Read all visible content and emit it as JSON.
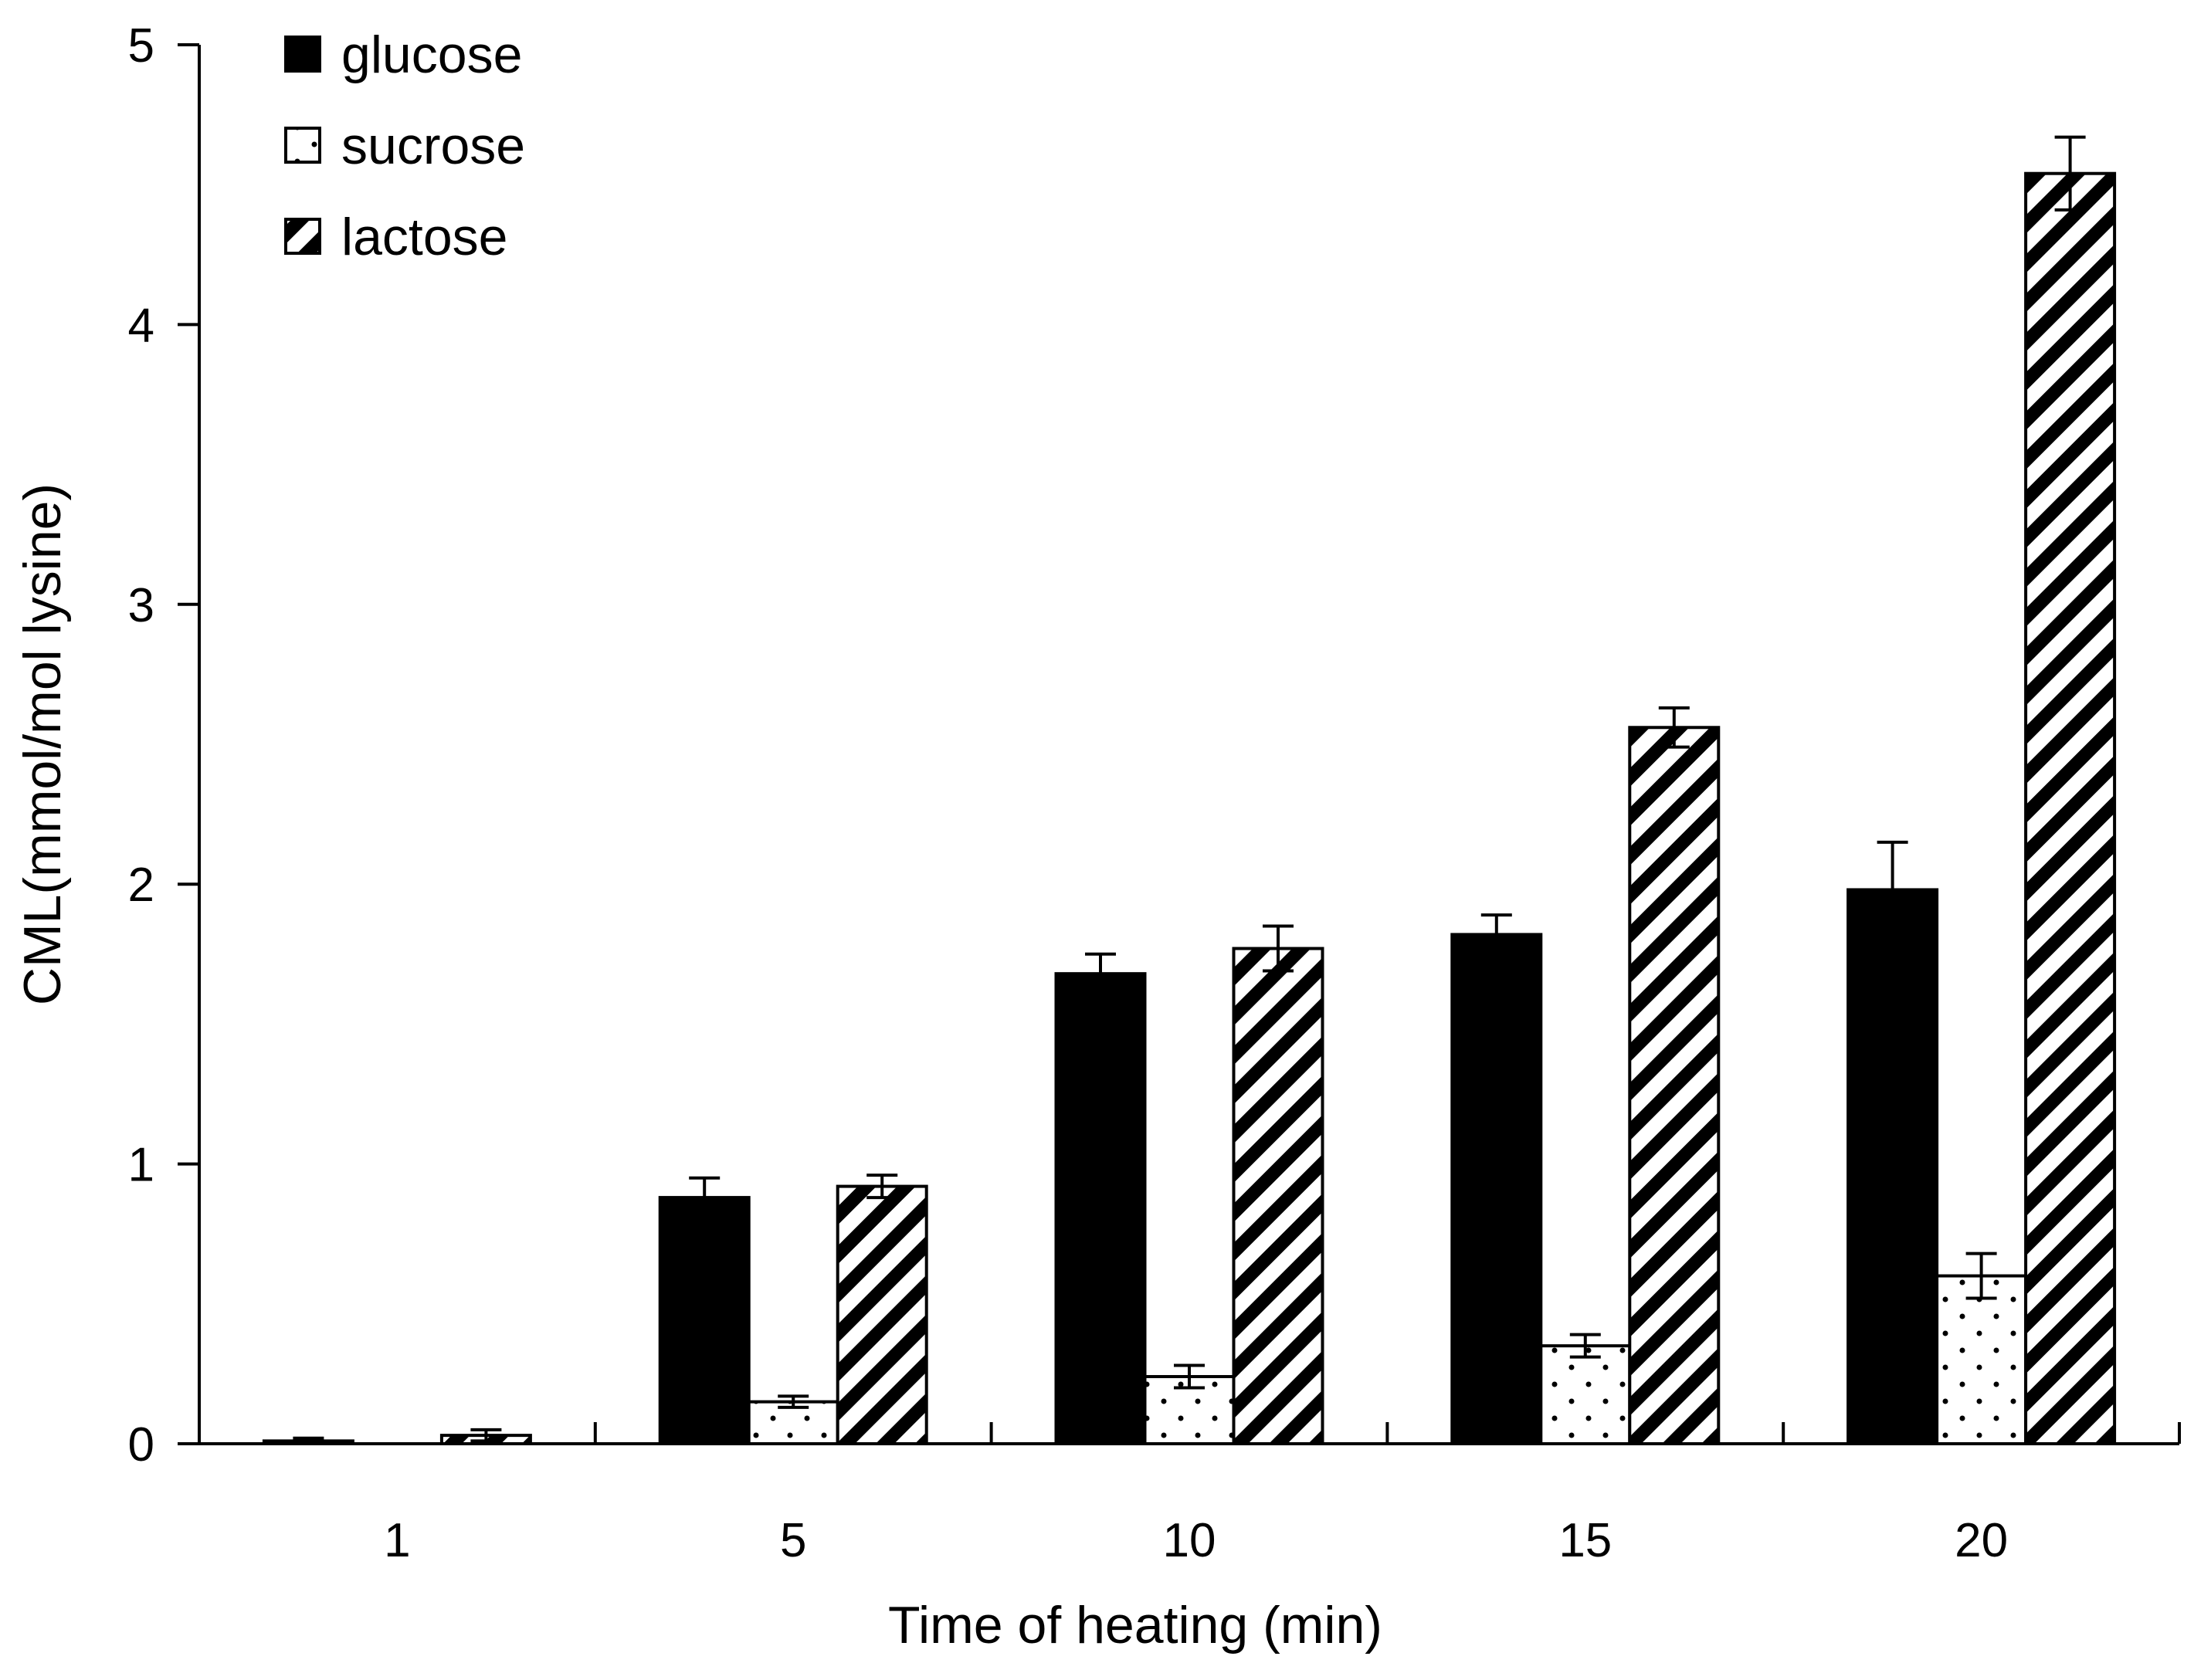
{
  "chart_data": {
    "type": "bar",
    "title": "",
    "xlabel": "Time of heating (min)",
    "ylabel": "CML(mmol/mol lysine)",
    "categories": [
      "1",
      "5",
      "10",
      "15",
      "20"
    ],
    "ylim": [
      0,
      5
    ],
    "yticks": [
      "0",
      "1",
      "2",
      "3",
      "4",
      "5"
    ],
    "legend_position": "top-left",
    "series": [
      {
        "name": "glucose",
        "fill": "solid",
        "color": "#000000",
        "values": [
          0.01,
          0.88,
          1.68,
          1.82,
          1.98
        ],
        "errors": [
          0.01,
          0.07,
          0.07,
          0.07,
          0.17
        ]
      },
      {
        "name": "sucrose",
        "fill": "dotted",
        "color": "#ffffff",
        "values": [
          0.0,
          0.15,
          0.24,
          0.35,
          0.6
        ],
        "errors": [
          0.0,
          0.02,
          0.04,
          0.04,
          0.08
        ]
      },
      {
        "name": "lactose",
        "fill": "diagonal-hatch",
        "color": "#000000",
        "values": [
          0.03,
          0.92,
          1.77,
          2.56,
          4.54
        ],
        "errors": [
          0.02,
          0.04,
          0.08,
          0.07,
          0.13
        ]
      }
    ]
  }
}
